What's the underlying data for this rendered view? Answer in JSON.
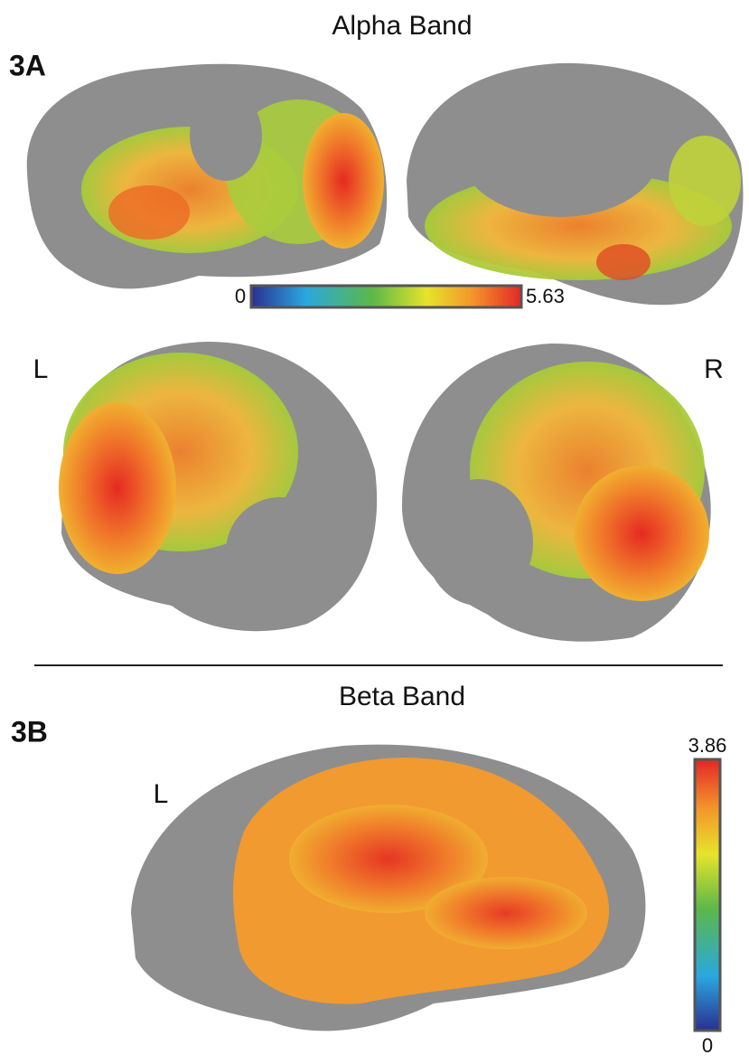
{
  "panels": [
    {
      "label": "3A",
      "title": "Alpha Band",
      "scale_min": 0,
      "scale_max": 5.63,
      "side_left": "L",
      "side_right": "R"
    },
    {
      "label": "3B",
      "title": "Beta Band",
      "scale_min": 0,
      "scale_max": 3.86,
      "side_left": "L"
    }
  ]
}
